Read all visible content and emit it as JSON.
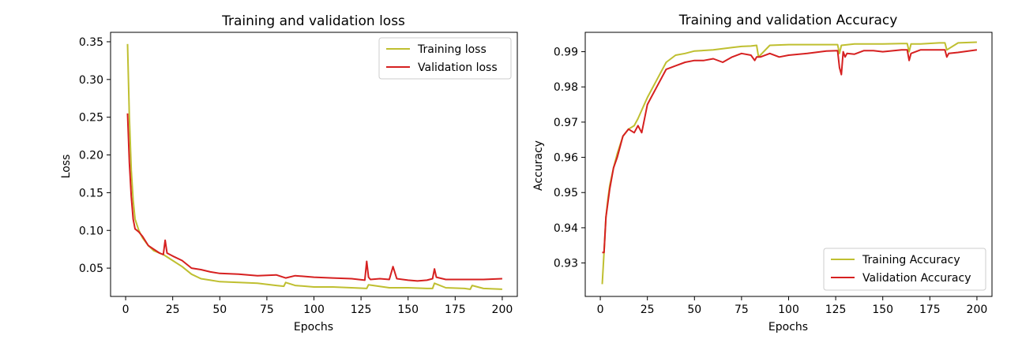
{
  "colors": {
    "training": "#bfbf30",
    "validation": "#d62020"
  },
  "chart_data": [
    {
      "type": "line",
      "title": "Training and validation loss",
      "xlabel": "Epochs",
      "ylabel": "Loss",
      "xlim": [
        -8,
        208
      ],
      "ylim": [
        0.0125,
        0.3625
      ],
      "xticks": [
        0,
        25,
        50,
        75,
        100,
        125,
        150,
        175,
        200
      ],
      "xtick_labels": [
        "0",
        "25",
        "50",
        "75",
        "100",
        "125",
        "150",
        "175",
        "200"
      ],
      "yticks": [
        0.05,
        0.1,
        0.15,
        0.2,
        0.25,
        0.3,
        0.35
      ],
      "ytick_labels": [
        "0.05",
        "0.10",
        "0.15",
        "0.20",
        "0.25",
        "0.30",
        "0.35"
      ],
      "legend_position": "upper right",
      "grid": false,
      "series": [
        {
          "name": "Training loss",
          "x": [
            1,
            2,
            3,
            4,
            5,
            7,
            9,
            12,
            15,
            20,
            25,
            30,
            35,
            40,
            45,
            50,
            60,
            70,
            80,
            84,
            85,
            90,
            100,
            110,
            120,
            128,
            129,
            140,
            150,
            160,
            163,
            164,
            170,
            180,
            183,
            184,
            190,
            200
          ],
          "values": [
            0.347,
            0.25,
            0.18,
            0.14,
            0.115,
            0.1,
            0.09,
            0.08,
            0.073,
            0.068,
            0.06,
            0.052,
            0.042,
            0.036,
            0.034,
            0.032,
            0.031,
            0.03,
            0.027,
            0.026,
            0.031,
            0.027,
            0.025,
            0.025,
            0.024,
            0.023,
            0.028,
            0.024,
            0.024,
            0.023,
            0.023,
            0.03,
            0.024,
            0.023,
            0.022,
            0.027,
            0.023,
            0.022
          ]
        },
        {
          "name": "Validation loss",
          "x": [
            1,
            2,
            3,
            4,
            5,
            7,
            9,
            12,
            15,
            18,
            20,
            21,
            22,
            25,
            30,
            35,
            40,
            45,
            50,
            60,
            70,
            80,
            85,
            90,
            100,
            110,
            120,
            127,
            128,
            129,
            130,
            135,
            140,
            142,
            144,
            150,
            155,
            160,
            163,
            164,
            165,
            170,
            180,
            190,
            200
          ],
          "values": [
            0.255,
            0.19,
            0.145,
            0.115,
            0.102,
            0.098,
            0.092,
            0.08,
            0.075,
            0.07,
            0.068,
            0.087,
            0.07,
            0.066,
            0.06,
            0.05,
            0.048,
            0.045,
            0.043,
            0.042,
            0.04,
            0.041,
            0.037,
            0.04,
            0.038,
            0.037,
            0.036,
            0.034,
            0.059,
            0.038,
            0.035,
            0.036,
            0.035,
            0.052,
            0.036,
            0.034,
            0.033,
            0.034,
            0.036,
            0.049,
            0.038,
            0.035,
            0.035,
            0.035,
            0.036
          ]
        }
      ]
    },
    {
      "type": "line",
      "title": "Training and validation Accuracy",
      "xlabel": "Epochs",
      "ylabel": "Accuracy",
      "xlim": [
        -8,
        208
      ],
      "ylim": [
        0.9205,
        0.9955
      ],
      "xticks": [
        0,
        25,
        50,
        75,
        100,
        125,
        150,
        175,
        200
      ],
      "xtick_labels": [
        "0",
        "25",
        "50",
        "75",
        "100",
        "125",
        "150",
        "175",
        "200"
      ],
      "yticks": [
        0.93,
        0.94,
        0.95,
        0.96,
        0.97,
        0.98,
        0.99
      ],
      "ytick_labels": [
        "0.93",
        "0.94",
        "0.95",
        "0.96",
        "0.97",
        "0.98",
        "0.99"
      ],
      "legend_position": "lower right",
      "grid": false,
      "series": [
        {
          "name": "Training Accuracy",
          "x": [
            1,
            2,
            3,
            4,
            5,
            7,
            9,
            12,
            15,
            18,
            20,
            25,
            30,
            35,
            40,
            45,
            50,
            60,
            70,
            75,
            80,
            83,
            84,
            90,
            100,
            110,
            120,
            126,
            127,
            128,
            135,
            140,
            150,
            160,
            163,
            164,
            165,
            170,
            180,
            183,
            184,
            190,
            200
          ],
          "values": [
            0.924,
            0.933,
            0.943,
            0.948,
            0.952,
            0.957,
            0.961,
            0.966,
            0.968,
            0.969,
            0.971,
            0.977,
            0.982,
            0.987,
            0.989,
            0.9895,
            0.9902,
            0.9905,
            0.9912,
            0.9915,
            0.9916,
            0.9918,
            0.9885,
            0.9918,
            0.992,
            0.992,
            0.992,
            0.992,
            0.9895,
            0.9918,
            0.9922,
            0.9922,
            0.9922,
            0.9923,
            0.9923,
            0.99,
            0.9922,
            0.9922,
            0.9925,
            0.9925,
            0.9905,
            0.9925,
            0.9927
          ]
        },
        {
          "name": "Validation Accuracy",
          "x": [
            1,
            2,
            3,
            4,
            5,
            7,
            9,
            12,
            15,
            18,
            20,
            22,
            25,
            27,
            30,
            35,
            40,
            45,
            50,
            55,
            60,
            65,
            70,
            75,
            80,
            82,
            83,
            85,
            90,
            95,
            100,
            110,
            120,
            126,
            127,
            128,
            129,
            130,
            131,
            135,
            140,
            145,
            150,
            160,
            163,
            164,
            165,
            170,
            180,
            183,
            184,
            185,
            190,
            200
          ],
          "values": [
            0.933,
            0.933,
            0.943,
            0.947,
            0.951,
            0.957,
            0.96,
            0.966,
            0.968,
            0.967,
            0.969,
            0.967,
            0.975,
            0.977,
            0.98,
            0.985,
            0.986,
            0.987,
            0.9875,
            0.9875,
            0.988,
            0.987,
            0.9885,
            0.9895,
            0.989,
            0.9875,
            0.9885,
            0.9885,
            0.9895,
            0.9885,
            0.989,
            0.9895,
            0.9902,
            0.9903,
            0.9855,
            0.9835,
            0.99,
            0.9885,
            0.9895,
            0.9893,
            0.9903,
            0.9903,
            0.99,
            0.9905,
            0.9905,
            0.9875,
            0.9895,
            0.9905,
            0.9905,
            0.9905,
            0.9885,
            0.9895,
            0.9898,
            0.9905
          ]
        }
      ]
    }
  ]
}
